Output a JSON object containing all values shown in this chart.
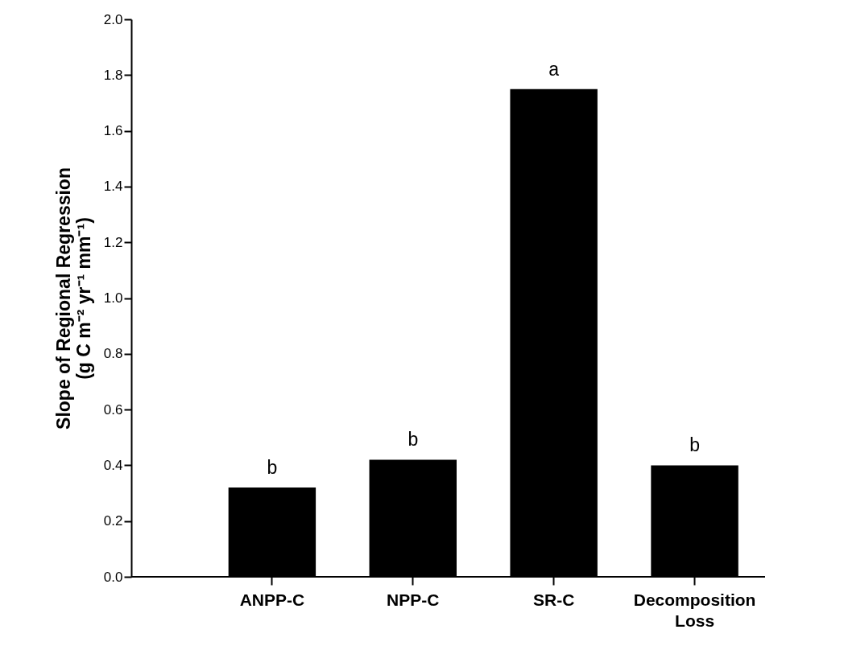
{
  "chart_data": {
    "type": "bar",
    "ylabel": "Slope of Regional Regression\n(g C m⁻² yr⁻¹ mm⁻¹)",
    "categories": [
      "ANPP-C",
      "NPP-C",
      "SR-C",
      "Decomposition Loss"
    ],
    "values": [
      0.32,
      0.42,
      1.75,
      0.4
    ],
    "color": "#000000",
    "ylim": [
      0,
      2.0
    ],
    "yticks": [
      {
        "value": 0,
        "label": "0.0"
      },
      {
        "value": 0.2,
        "label": "0.2"
      },
      {
        "value": 0.4,
        "label": "0.4"
      },
      {
        "value": 0.6,
        "label": "0.6"
      },
      {
        "value": 0.8,
        "label": "0.8"
      },
      {
        "value": 1.0,
        "label": "1.0"
      },
      {
        "value": 1.2,
        "label": "1.2"
      },
      {
        "value": 1.4,
        "label": "1.4"
      },
      {
        "value": 1.6,
        "label": "1.6"
      },
      {
        "value": 1.8,
        "label": "1.8"
      },
      {
        "value": 2.0,
        "label": "2.0"
      }
    ],
    "annotations": [
      {
        "text": "b",
        "x": "ANPP-C",
        "y": 0.32
      },
      {
        "text": "b",
        "x": "NPP-C",
        "y": 0.42
      },
      {
        "text": "a",
        "x": "SR-C",
        "y": 1.75
      },
      {
        "text": "b",
        "x": "Decomposition Loss",
        "y": 0.4
      }
    ],
    "grid": false
  }
}
